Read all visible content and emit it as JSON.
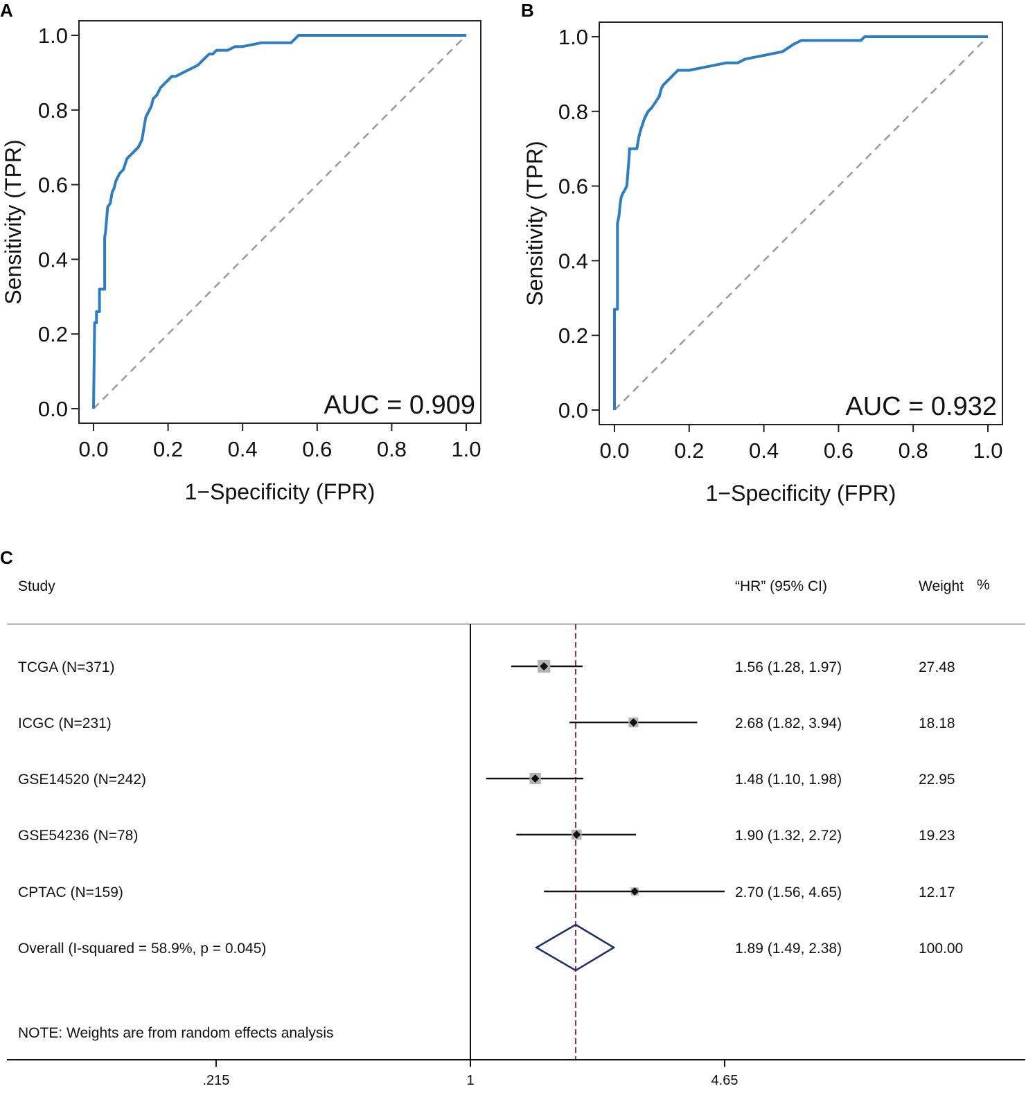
{
  "chart_data": [
    {
      "panel": "A",
      "type": "line",
      "title": "",
      "xlabel": "1−Specificity (FPR)",
      "ylabel": "Sensitivity (TPR)",
      "xlim": [
        0,
        1
      ],
      "ylim": [
        0,
        1
      ],
      "xticks": [
        "0.0",
        "0.2",
        "0.4",
        "0.6",
        "0.8",
        "1.0"
      ],
      "yticks": [
        "0.0",
        "0.2",
        "0.4",
        "0.6",
        "0.8",
        "1.0"
      ],
      "annotation": "AUC = 0.909",
      "colors": {
        "roc": "#2e7cc2",
        "reference": "#9a9a9a"
      },
      "series": [
        {
          "name": "ROC",
          "x": [
            0,
            0.003,
            0.008,
            0.008,
            0.016,
            0.016,
            0.03,
            0.03,
            0.032,
            0.038,
            0.045,
            0.05,
            0.055,
            0.06,
            0.065,
            0.07,
            0.08,
            0.09,
            0.1,
            0.11,
            0.12,
            0.125,
            0.13,
            0.14,
            0.145,
            0.15,
            0.155,
            0.16,
            0.17,
            0.175,
            0.18,
            0.19,
            0.2,
            0.21,
            0.22,
            0.24,
            0.26,
            0.28,
            0.29,
            0.3,
            0.31,
            0.32,
            0.33,
            0.36,
            0.38,
            0.4,
            0.45,
            0.53,
            0.55,
            0.56,
            1.0
          ],
          "y": [
            0,
            0.23,
            0.23,
            0.26,
            0.26,
            0.32,
            0.32,
            0.46,
            0.47,
            0.54,
            0.55,
            0.58,
            0.59,
            0.61,
            0.62,
            0.63,
            0.64,
            0.67,
            0.68,
            0.69,
            0.7,
            0.71,
            0.72,
            0.78,
            0.79,
            0.8,
            0.81,
            0.83,
            0.84,
            0.85,
            0.86,
            0.87,
            0.88,
            0.89,
            0.89,
            0.9,
            0.91,
            0.92,
            0.93,
            0.94,
            0.95,
            0.95,
            0.96,
            0.96,
            0.97,
            0.97,
            0.98,
            0.98,
            1.0,
            1.0,
            1.0
          ]
        }
      ]
    },
    {
      "panel": "B",
      "type": "line",
      "title": "",
      "xlabel": "1−Specificity (FPR)",
      "ylabel": "Sensitivity (TPR)",
      "xlim": [
        0,
        1
      ],
      "ylim": [
        0,
        1
      ],
      "xticks": [
        "0.0",
        "0.2",
        "0.4",
        "0.6",
        "0.8",
        "1.0"
      ],
      "yticks": [
        "0.0",
        "0.2",
        "0.4",
        "0.6",
        "0.8",
        "1.0"
      ],
      "annotation": "AUC = 0.932",
      "colors": {
        "roc": "#2e7cc2",
        "reference": "#9a9a9a"
      },
      "series": [
        {
          "name": "ROC",
          "x": [
            0,
            0.0,
            0.008,
            0.008,
            0.012,
            0.015,
            0.018,
            0.022,
            0.028,
            0.033,
            0.04,
            0.04,
            0.06,
            0.065,
            0.07,
            0.08,
            0.09,
            0.1,
            0.12,
            0.125,
            0.13,
            0.14,
            0.15,
            0.16,
            0.17,
            0.2,
            0.25,
            0.3,
            0.33,
            0.35,
            0.4,
            0.45,
            0.48,
            0.5,
            0.55,
            0.6,
            0.66,
            0.67,
            1.0
          ],
          "y": [
            0,
            0.27,
            0.27,
            0.5,
            0.52,
            0.55,
            0.57,
            0.58,
            0.59,
            0.6,
            0.69,
            0.7,
            0.7,
            0.73,
            0.75,
            0.78,
            0.8,
            0.81,
            0.84,
            0.86,
            0.87,
            0.88,
            0.89,
            0.9,
            0.91,
            0.91,
            0.92,
            0.93,
            0.93,
            0.94,
            0.95,
            0.96,
            0.98,
            0.99,
            0.99,
            0.99,
            0.99,
            1.0,
            1.0
          ]
        }
      ]
    },
    {
      "panel": "C",
      "type": "forest",
      "header": {
        "study": "Study",
        "hr": "“HR” (95% CI)",
        "weight": "Weight",
        "pct": "%"
      },
      "x_scale": "log",
      "xticks": [
        ".215",
        "1",
        "4.65"
      ],
      "xtick_values": [
        0.215,
        1,
        4.65
      ],
      "null_value": 1,
      "overall_value": 1.89,
      "colors": {
        "box": "#b4b4b4",
        "overall": "#1c2d6e",
        "ref_line": "#a03040"
      },
      "rows": [
        {
          "label": "TCGA (N=371)",
          "hr": 1.56,
          "lo": 1.28,
          "hi": 1.97,
          "ci_text": "1.56 (1.28, 1.97)",
          "weight": 27.48,
          "weight_text": "27.48"
        },
        {
          "label": "ICGC (N=231)",
          "hr": 2.68,
          "lo": 1.82,
          "hi": 3.94,
          "ci_text": "2.68 (1.82, 3.94)",
          "weight": 18.18,
          "weight_text": "18.18"
        },
        {
          "label": "GSE14520 (N=242)",
          "hr": 1.48,
          "lo": 1.1,
          "hi": 1.98,
          "ci_text": "1.48 (1.10, 1.98)",
          "weight": 22.95,
          "weight_text": "22.95"
        },
        {
          "label": "GSE54236 (N=78)",
          "hr": 1.9,
          "lo": 1.32,
          "hi": 2.72,
          "ci_text": "1.90 (1.32, 2.72)",
          "weight": 19.23,
          "weight_text": "19.23"
        },
        {
          "label": "CPTAC (N=159)",
          "hr": 2.7,
          "lo": 1.56,
          "hi": 4.65,
          "ci_text": "2.70 (1.56, 4.65)",
          "weight": 12.17,
          "weight_text": "12.17"
        }
      ],
      "overall": {
        "label": "Overall  (I-squared = 58.9%, p = 0.045)",
        "hr": 1.89,
        "lo": 1.49,
        "hi": 2.38,
        "ci_text": "1.89 (1.49, 2.38)",
        "weight_text": "100.00"
      },
      "note": "NOTE: Weights are from random effects analysis"
    }
  ]
}
